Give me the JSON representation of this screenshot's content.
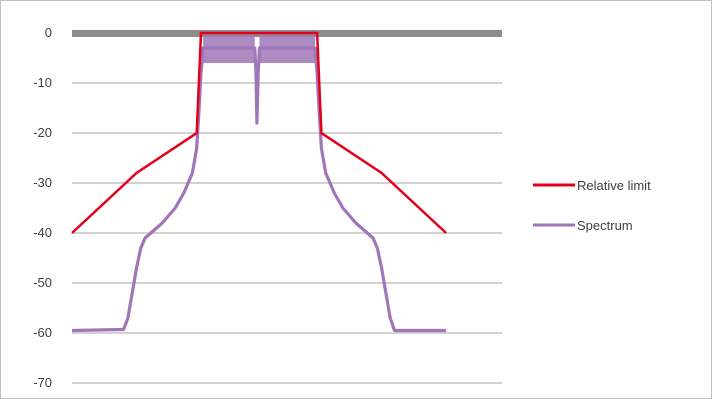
{
  "chart_data": {
    "type": "line",
    "title": "",
    "xlabel": "",
    "ylabel": "",
    "ylim": [
      -70,
      0
    ],
    "xlim": [
      0,
      100
    ],
    "yticks": [
      "0",
      "-10",
      "-20",
      "-30",
      "-40",
      "-50",
      "-60",
      "-70"
    ],
    "grid": true,
    "legend_position": "right",
    "series": [
      {
        "name": "Relative limit",
        "color": "#e3001b",
        "points": [
          [
            0,
            -40
          ],
          [
            10,
            -32
          ],
          [
            15,
            -28
          ],
          [
            29,
            -20
          ],
          [
            30,
            0
          ],
          [
            57,
            0
          ],
          [
            58,
            -20
          ],
          [
            72,
            -28
          ],
          [
            77,
            -32
          ],
          [
            87,
            -40
          ]
        ]
      },
      {
        "name": "Spectrum",
        "color": "#a076b8",
        "points": [
          [
            0,
            -59.5
          ],
          [
            12,
            -59.3
          ],
          [
            13,
            -57
          ],
          [
            14,
            -52
          ],
          [
            15,
            -47
          ],
          [
            16,
            -43
          ],
          [
            17,
            -41
          ],
          [
            19,
            -39.5
          ],
          [
            21,
            -38
          ],
          [
            24,
            -35
          ],
          [
            26,
            -32
          ],
          [
            28,
            -28
          ],
          [
            29,
            -23
          ],
          [
            29.5,
            -16
          ],
          [
            30,
            -8
          ],
          [
            30.5,
            -3
          ],
          [
            42.5,
            -3
          ],
          [
            42.8,
            -8
          ],
          [
            43,
            -18
          ],
          [
            43.3,
            -8
          ],
          [
            43.6,
            -3
          ],
          [
            56.5,
            -3
          ],
          [
            57,
            -8
          ],
          [
            57.5,
            -16
          ],
          [
            58,
            -23
          ],
          [
            59,
            -28
          ],
          [
            61,
            -32
          ],
          [
            63,
            -35
          ],
          [
            66,
            -38
          ],
          [
            68,
            -39.5
          ],
          [
            70,
            -41
          ],
          [
            71,
            -43
          ],
          [
            72,
            -47
          ],
          [
            73,
            -52
          ],
          [
            74,
            -57
          ],
          [
            75,
            -59.5
          ],
          [
            87,
            -59.5
          ]
        ]
      }
    ],
    "reference_band": {
      "y": 0,
      "color": "#8c8c8c"
    }
  }
}
